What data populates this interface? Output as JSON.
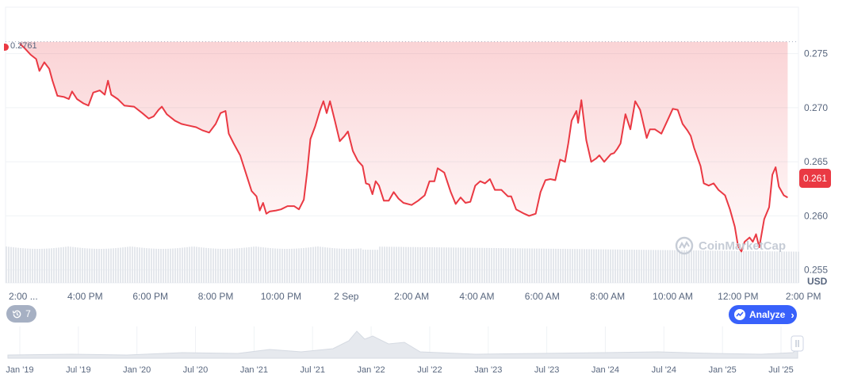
{
  "chart_data": {
    "type": "line",
    "y_unit": "USD",
    "ylim": [
      0.2538,
      0.2793
    ],
    "y_ticks": [
      "0.275",
      "0.270",
      "0.265",
      "0.260",
      "0.255"
    ],
    "x_ticks": [
      "2:00 ...",
      "4:00 PM",
      "6:00 PM",
      "8:00 PM",
      "10:00 PM",
      "2 Sep",
      "2:00 AM",
      "4:00 AM",
      "6:00 AM",
      "8:00 AM",
      "10:00 AM",
      "12:00 PM",
      "2:00 PM"
    ],
    "x_hours": [
      0,
      2,
      4,
      6,
      8,
      10,
      12,
      14,
      16,
      18,
      20,
      22,
      24
    ],
    "open_price": 0.2761,
    "open_price_label": "0.2761",
    "current_price": 0.261,
    "current_price_label": "0.261",
    "line_color": "#ea3943",
    "grid": true,
    "series": [
      {
        "points": [
          [
            0.0,
            0.2759
          ],
          [
            0.15,
            0.2755
          ],
          [
            0.33,
            0.2749
          ],
          [
            0.5,
            0.2745
          ],
          [
            0.6,
            0.2734
          ],
          [
            0.75,
            0.2742
          ],
          [
            0.9,
            0.2736
          ],
          [
            1.0,
            0.2725
          ],
          [
            1.15,
            0.2711
          ],
          [
            1.35,
            0.271
          ],
          [
            1.5,
            0.2708
          ],
          [
            1.6,
            0.2715
          ],
          [
            1.75,
            0.2708
          ],
          [
            1.95,
            0.2704
          ],
          [
            2.1,
            0.2702
          ],
          [
            2.25,
            0.2714
          ],
          [
            2.45,
            0.2716
          ],
          [
            2.6,
            0.2712
          ],
          [
            2.7,
            0.2725
          ],
          [
            2.8,
            0.2712
          ],
          [
            3.0,
            0.2708
          ],
          [
            3.2,
            0.2702
          ],
          [
            3.5,
            0.2701
          ],
          [
            3.75,
            0.2695
          ],
          [
            3.95,
            0.269
          ],
          [
            4.1,
            0.2692
          ],
          [
            4.25,
            0.2698
          ],
          [
            4.35,
            0.2701
          ],
          [
            4.5,
            0.2694
          ],
          [
            4.75,
            0.2688
          ],
          [
            4.95,
            0.2685
          ],
          [
            5.1,
            0.2684
          ],
          [
            5.4,
            0.2682
          ],
          [
            5.6,
            0.2679
          ],
          [
            5.8,
            0.2677
          ],
          [
            6.0,
            0.2685
          ],
          [
            6.15,
            0.2695
          ],
          [
            6.3,
            0.2697
          ],
          [
            6.4,
            0.2676
          ],
          [
            6.55,
            0.2667
          ],
          [
            6.75,
            0.2656
          ],
          [
            6.95,
            0.2637
          ],
          [
            7.1,
            0.2623
          ],
          [
            7.25,
            0.2618
          ],
          [
            7.35,
            0.2605
          ],
          [
            7.45,
            0.2612
          ],
          [
            7.55,
            0.2602
          ],
          [
            7.65,
            0.2604
          ],
          [
            7.85,
            0.2605
          ],
          [
            8.0,
            0.2606
          ],
          [
            8.2,
            0.2609
          ],
          [
            8.4,
            0.2609
          ],
          [
            8.55,
            0.2606
          ],
          [
            8.7,
            0.2615
          ],
          [
            8.8,
            0.264
          ],
          [
            8.9,
            0.2671
          ],
          [
            9.05,
            0.2683
          ],
          [
            9.2,
            0.2698
          ],
          [
            9.3,
            0.2706
          ],
          [
            9.4,
            0.2695
          ],
          [
            9.5,
            0.2706
          ],
          [
            9.65,
            0.2688
          ],
          [
            9.8,
            0.2669
          ],
          [
            9.95,
            0.2674
          ],
          [
            10.05,
            0.2678
          ],
          [
            10.2,
            0.266
          ],
          [
            10.35,
            0.2651
          ],
          [
            10.5,
            0.2646
          ],
          [
            10.6,
            0.263
          ],
          [
            10.7,
            0.2629
          ],
          [
            10.8,
            0.262
          ],
          [
            10.9,
            0.2632
          ],
          [
            11.0,
            0.2628
          ],
          [
            11.15,
            0.2614
          ],
          [
            11.3,
            0.2614
          ],
          [
            11.45,
            0.2622
          ],
          [
            11.6,
            0.2616
          ],
          [
            11.75,
            0.2612
          ],
          [
            12.0,
            0.261
          ],
          [
            12.2,
            0.2614
          ],
          [
            12.4,
            0.2619
          ],
          [
            12.55,
            0.2632
          ],
          [
            12.7,
            0.2632
          ],
          [
            12.8,
            0.2644
          ],
          [
            13.0,
            0.264
          ],
          [
            13.2,
            0.2622
          ],
          [
            13.35,
            0.2611
          ],
          [
            13.5,
            0.2617
          ],
          [
            13.65,
            0.2612
          ],
          [
            13.8,
            0.2613
          ],
          [
            13.95,
            0.2628
          ],
          [
            14.1,
            0.2632
          ],
          [
            14.25,
            0.263
          ],
          [
            14.4,
            0.2634
          ],
          [
            14.55,
            0.2624
          ],
          [
            14.75,
            0.2624
          ],
          [
            14.95,
            0.2618
          ],
          [
            15.05,
            0.2618
          ],
          [
            15.2,
            0.2606
          ],
          [
            15.45,
            0.2602
          ],
          [
            15.6,
            0.26
          ],
          [
            15.8,
            0.2602
          ],
          [
            15.95,
            0.2622
          ],
          [
            16.1,
            0.2633
          ],
          [
            16.25,
            0.2634
          ],
          [
            16.4,
            0.2633
          ],
          [
            16.55,
            0.2652
          ],
          [
            16.7,
            0.265
          ],
          [
            16.8,
            0.2667
          ],
          [
            16.9,
            0.2688
          ],
          [
            17.05,
            0.2697
          ],
          [
            17.1,
            0.2686
          ],
          [
            17.2,
            0.2707
          ],
          [
            17.35,
            0.267
          ],
          [
            17.5,
            0.265
          ],
          [
            17.65,
            0.2653
          ],
          [
            17.75,
            0.2656
          ],
          [
            17.9,
            0.265
          ],
          [
            18.1,
            0.2657
          ],
          [
            18.2,
            0.2658
          ],
          [
            18.3,
            0.2662
          ],
          [
            18.4,
            0.2667
          ],
          [
            18.55,
            0.2694
          ],
          [
            18.7,
            0.268
          ],
          [
            18.85,
            0.2706
          ],
          [
            19.0,
            0.2698
          ],
          [
            19.2,
            0.2672
          ],
          [
            19.3,
            0.268
          ],
          [
            19.45,
            0.268
          ],
          [
            19.65,
            0.2676
          ],
          [
            19.85,
            0.2689
          ],
          [
            20.0,
            0.2699
          ],
          [
            20.15,
            0.2698
          ],
          [
            20.3,
            0.2685
          ],
          [
            20.45,
            0.2679
          ],
          [
            20.55,
            0.2674
          ],
          [
            20.65,
            0.2663
          ],
          [
            20.85,
            0.2646
          ],
          [
            20.95,
            0.263
          ],
          [
            21.1,
            0.2628
          ],
          [
            21.25,
            0.263
          ],
          [
            21.4,
            0.2624
          ],
          [
            21.6,
            0.2619
          ],
          [
            21.75,
            0.2606
          ],
          [
            21.9,
            0.259
          ],
          [
            22.0,
            0.2572
          ],
          [
            22.1,
            0.2567
          ],
          [
            22.2,
            0.2576
          ],
          [
            22.35,
            0.258
          ],
          [
            22.45,
            0.2576
          ],
          [
            22.55,
            0.2583
          ],
          [
            22.65,
            0.2571
          ],
          [
            22.8,
            0.2597
          ],
          [
            22.95,
            0.2608
          ],
          [
            23.05,
            0.2638
          ],
          [
            23.15,
            0.2645
          ],
          [
            23.25,
            0.2627
          ],
          [
            23.4,
            0.2619
          ],
          [
            23.52,
            0.2617
          ]
        ]
      }
    ],
    "volume_color": "#e4e7ec",
    "navigator": {
      "x_ticks": [
        "Jan '19",
        "Jul '19",
        "Jan '20",
        "Jul '20",
        "Jan '21",
        "Jul '21",
        "Jan '22",
        "Jul '22",
        "Jan '23",
        "Jul '23",
        "Jan '24",
        "Jul '24",
        "Jan '25",
        "Jul '25"
      ]
    }
  },
  "controls": {
    "history_count": "7",
    "analyze_label": "Analyze"
  },
  "watermark": "CoinMarketCap",
  "icons": {
    "history": "history-icon",
    "analyze": "analyze-icon",
    "chevron": "chevron-right-icon",
    "watermark_logo": "coinmarketcap-logo-icon",
    "scroll_handle": "navigator-handle-icon"
  }
}
